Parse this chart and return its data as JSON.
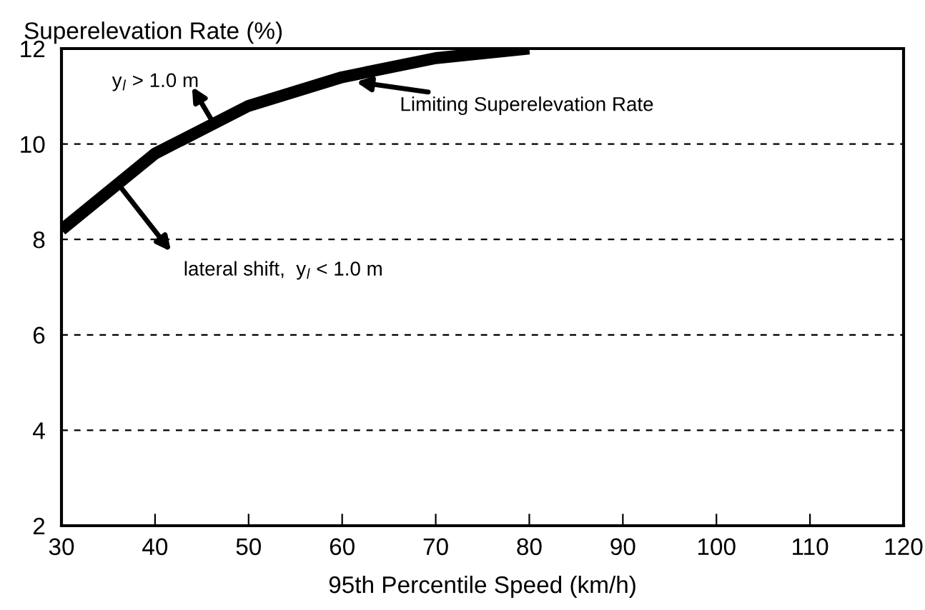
{
  "chart_data": {
    "type": "line",
    "x": [
      30,
      40,
      50,
      60,
      70,
      80
    ],
    "series": [
      {
        "color": "#000000",
        "values": [
          8.2,
          9.8,
          10.8,
          11.4,
          11.8,
          12.0
        ]
      }
    ],
    "xlabel": "95th Percentile Speed (km/h)",
    "ylabel": "Superelevation Rate (%)",
    "xlim": [
      30,
      120
    ],
    "xticks": [
      30,
      40,
      50,
      60,
      70,
      80,
      90,
      100,
      110,
      120
    ],
    "ylim": [
      2,
      12
    ],
    "yticks": [
      2,
      4,
      6,
      8,
      10,
      12
    ],
    "grid": "y",
    "line_style": "solid",
    "marker": "none",
    "annotations": [
      {
        "text": "Limiting Superelevation Rate",
        "x": 61.5,
        "y": 11.3
      },
      "y$_{l}$ > 1.0 m",
      "lateral shift,  y$_{l}$ < 1.0 m"
    ]
  }
}
